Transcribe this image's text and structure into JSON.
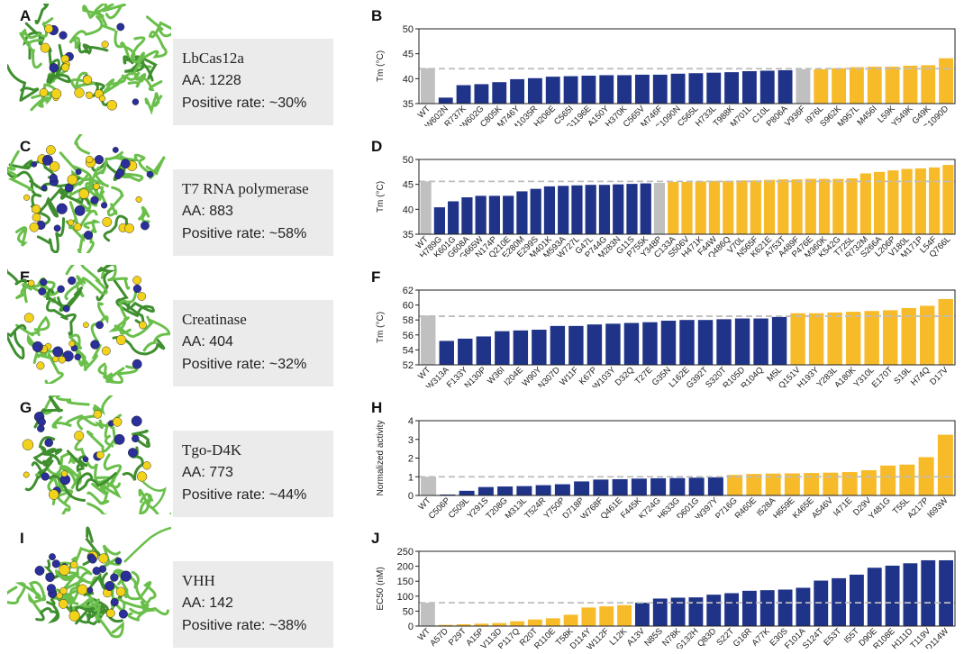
{
  "colors": {
    "wt": "#c0c0c0",
    "negative": "#1f3388",
    "positive": "#f7bb2a",
    "protein_green": "#6abf4b"
  },
  "panels": [
    {
      "letter": "A",
      "name": "LbCas12a",
      "aa": "AA: 1228",
      "rate": "Positive rate: ~30%"
    },
    {
      "letter": "C",
      "name": "T7 RNA polymerase",
      "aa": "AA: 883",
      "rate": "Positive rate: ~58%"
    },
    {
      "letter": "E",
      "name": "Creatinase",
      "aa": "AA: 404",
      "rate": "Positive rate: ~32%"
    },
    {
      "letter": "G",
      "name": "Tgo-D4K",
      "aa": "AA: 773",
      "rate": "Positive rate: ~44%"
    },
    {
      "letter": "I",
      "name": "VHH",
      "aa": "AA: 142",
      "rate": "Positive rate: ~38%"
    }
  ],
  "chart_data": [
    {
      "panel": "B",
      "type": "bar",
      "ylabel": "Tm (°C)",
      "ylim": [
        35,
        50
      ],
      "yticks": [
        35,
        40,
        45,
        50
      ],
      "reference": 42,
      "categories": [
        "WT",
        "W602N",
        "R737K",
        "W602G",
        "C805K",
        "M746Y",
        "M1035R",
        "H206E",
        "C565I",
        "G1196E",
        "A150Y",
        "H370K",
        "C565V",
        "M746F",
        "C1090N",
        "C565L",
        "H733L",
        "T988K",
        "M701L",
        "C10L",
        "P806A",
        "V936F",
        "I976L",
        "S962K",
        "M957L",
        "M456I",
        "L59K",
        "Y549K",
        "G49K",
        "C1090D"
      ],
      "values": [
        42.1,
        36.2,
        38.7,
        38.9,
        39.3,
        39.9,
        40.1,
        40.4,
        40.5,
        40.6,
        40.7,
        40.7,
        40.8,
        40.8,
        41.0,
        41.1,
        41.2,
        41.3,
        41.5,
        41.6,
        41.7,
        41.9,
        41.9,
        42.1,
        42.3,
        42.4,
        42.4,
        42.6,
        42.7,
        44.1
      ],
      "colors": [
        "wt",
        "neg",
        "neg",
        "neg",
        "neg",
        "neg",
        "neg",
        "neg",
        "neg",
        "neg",
        "neg",
        "neg",
        "neg",
        "neg",
        "neg",
        "neg",
        "neg",
        "neg",
        "neg",
        "neg",
        "neg",
        "wt",
        "pos",
        "pos",
        "pos",
        "pos",
        "pos",
        "pos",
        "pos",
        "pos"
      ]
    },
    {
      "panel": "D",
      "type": "bar",
      "ylabel": "Tm (°C)",
      "ylim": [
        35,
        50
      ],
      "yticks": [
        35,
        40,
        45,
        50
      ],
      "reference": 45.6,
      "categories": [
        "WT",
        "H789G",
        "K601G",
        "G608A",
        "G665W",
        "N174P",
        "Q210E",
        "E280M",
        "E299S",
        "M401K",
        "M593A",
        "W727L",
        "G47L",
        "P744G",
        "M283N",
        "G11S",
        "P755K",
        "Y348P",
        "C133A",
        "S506V",
        "H471K",
        "F44W",
        "Q486Q",
        "V70L",
        "N565F",
        "K621E",
        "A753T",
        "A489F",
        "P476E",
        "M360K",
        "K542G",
        "T725L",
        "R732M",
        "S266A",
        "L206P",
        "V180L",
        "M171P",
        "L54F",
        "Q766L"
      ],
      "values": [
        45.6,
        40.4,
        41.6,
        42.4,
        42.7,
        42.7,
        42.7,
        43.6,
        44.1,
        44.6,
        44.7,
        44.8,
        44.9,
        44.9,
        45.0,
        45.1,
        45.2,
        45.3,
        45.5,
        45.5,
        45.6,
        45.7,
        45.7,
        45.8,
        45.8,
        45.9,
        46.0,
        46.0,
        46.1,
        46.1,
        46.1,
        46.2,
        47.2,
        47.5,
        47.8,
        48.1,
        48.2,
        48.4,
        48.9
      ],
      "colors": [
        "wt",
        "neg",
        "neg",
        "neg",
        "neg",
        "neg",
        "neg",
        "neg",
        "neg",
        "neg",
        "neg",
        "neg",
        "neg",
        "neg",
        "neg",
        "neg",
        "neg",
        "wt",
        "pos",
        "pos",
        "pos",
        "pos",
        "pos",
        "pos",
        "pos",
        "pos",
        "pos",
        "pos",
        "pos",
        "pos",
        "pos",
        "pos",
        "pos",
        "pos",
        "pos",
        "pos",
        "pos",
        "pos",
        "pos"
      ]
    },
    {
      "panel": "F",
      "type": "bar",
      "ylabel": "Tm (°C)",
      "ylim": [
        52,
        62
      ],
      "yticks": [
        52,
        54,
        56,
        58,
        60,
        62
      ],
      "reference": 58.5,
      "categories": [
        "WT",
        "W313A",
        "F133Y",
        "N130P",
        "W36I",
        "I204E",
        "W90Y",
        "N307D",
        "W11F",
        "K67P",
        "W103Y",
        "D32Q",
        "T27E",
        "G35N",
        "L162E",
        "G392T",
        "S320T",
        "R105D",
        "R104Q",
        "M5L",
        "Q151V",
        "H193Y",
        "Y283L",
        "A180K",
        "Y310L",
        "E170T",
        "S19L",
        "H74Q",
        "D17V"
      ],
      "values": [
        58.6,
        55.2,
        55.5,
        55.8,
        56.5,
        56.6,
        56.7,
        57.2,
        57.2,
        57.4,
        57.5,
        57.6,
        57.7,
        57.9,
        58.0,
        58.0,
        58.1,
        58.2,
        58.2,
        58.4,
        58.9,
        58.9,
        59.0,
        59.1,
        59.2,
        59.3,
        59.6,
        59.9,
        60.8
      ],
      "colors": [
        "wt",
        "neg",
        "neg",
        "neg",
        "neg",
        "neg",
        "neg",
        "neg",
        "neg",
        "neg",
        "neg",
        "neg",
        "neg",
        "neg",
        "neg",
        "neg",
        "neg",
        "neg",
        "neg",
        "neg",
        "pos",
        "pos",
        "pos",
        "pos",
        "pos",
        "pos",
        "pos",
        "pos",
        "pos"
      ]
    },
    {
      "panel": "H",
      "type": "bar",
      "ylabel": "Normalized activity",
      "ylim": [
        0,
        4
      ],
      "yticks": [
        0,
        1,
        2,
        3,
        4
      ],
      "reference": 1,
      "categories": [
        "WT",
        "C506P",
        "C509L",
        "Y291S",
        "T208G",
        "M313L",
        "T524R",
        "Y750P",
        "D718P",
        "W768F",
        "Q461E",
        "F445K",
        "K724G",
        "H633G",
        "D601G",
        "W397Y",
        "P716G",
        "R460E",
        "I528A",
        "H659E",
        "K465E",
        "A546V",
        "I471E",
        "D29V",
        "Y481G",
        "T55L",
        "A217P",
        "I693W"
      ],
      "values": [
        1.0,
        0.05,
        0.25,
        0.45,
        0.48,
        0.5,
        0.55,
        0.6,
        0.75,
        0.85,
        0.87,
        0.9,
        0.92,
        0.93,
        0.95,
        0.97,
        1.1,
        1.15,
        1.17,
        1.18,
        1.2,
        1.22,
        1.25,
        1.35,
        1.6,
        1.65,
        2.05,
        3.25
      ],
      "colors": [
        "wt",
        "neg",
        "neg",
        "neg",
        "neg",
        "neg",
        "neg",
        "neg",
        "neg",
        "neg",
        "neg",
        "neg",
        "neg",
        "neg",
        "neg",
        "neg",
        "pos",
        "pos",
        "pos",
        "pos",
        "pos",
        "pos",
        "pos",
        "pos",
        "pos",
        "pos",
        "pos",
        "pos"
      ]
    },
    {
      "panel": "J",
      "type": "bar",
      "ylabel": "EC50 (nM)",
      "ylim": [
        0,
        250
      ],
      "yticks": [
        0,
        50,
        100,
        150,
        200,
        250
      ],
      "reference": 78,
      "categories": [
        "WT",
        "A57D",
        "P29T",
        "A15P",
        "V113D",
        "P117Q",
        "R20T",
        "R110E",
        "T58K",
        "D114Y",
        "W112F",
        "L12K",
        "A13V",
        "N85S",
        "N78K",
        "G132H",
        "Q83D",
        "S22T",
        "G16R",
        "A77K",
        "E30S",
        "F101A",
        "S124T",
        "E53T",
        "I55T",
        "D90E",
        "R108E",
        "H111D",
        "T119V",
        "D114W"
      ],
      "values": [
        78,
        4,
        6,
        8,
        10,
        16,
        22,
        26,
        38,
        62,
        66,
        70,
        78,
        92,
        95,
        96,
        105,
        110,
        118,
        120,
        122,
        128,
        152,
        160,
        172,
        195,
        202,
        210,
        220,
        220
      ],
      "colors": [
        "wt",
        "pos",
        "pos",
        "pos",
        "pos",
        "pos",
        "pos",
        "pos",
        "pos",
        "pos",
        "pos",
        "pos",
        "neg",
        "neg",
        "neg",
        "neg",
        "neg",
        "neg",
        "neg",
        "neg",
        "neg",
        "neg",
        "neg",
        "neg",
        "neg",
        "neg",
        "neg",
        "neg",
        "neg",
        "neg"
      ]
    }
  ]
}
